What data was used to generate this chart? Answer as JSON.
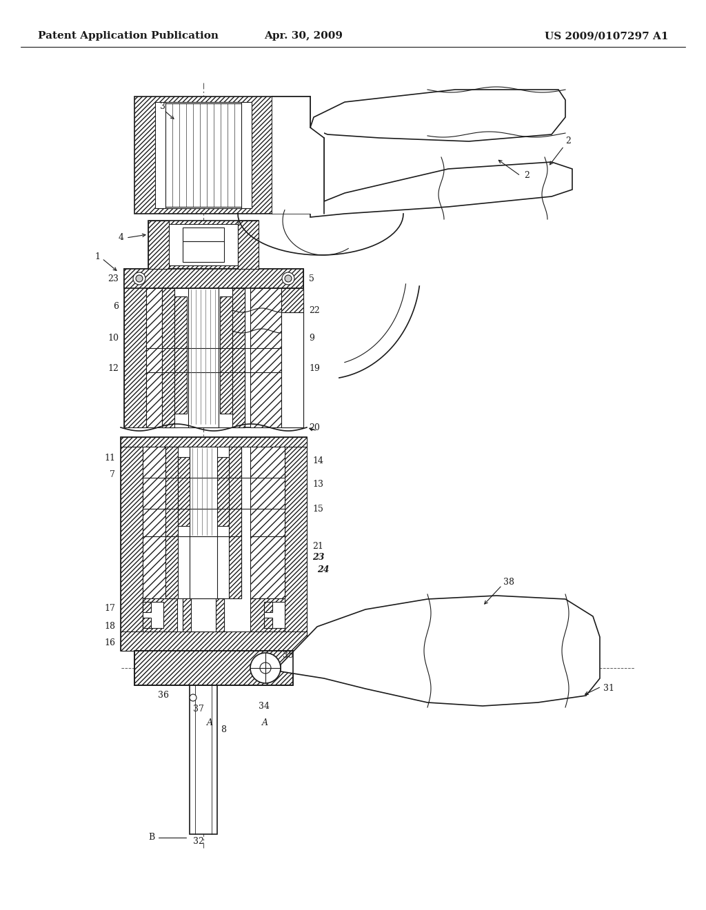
{
  "bg_color": "#ffffff",
  "line_color": "#1a1a1a",
  "header_left": "Patent Application Publication",
  "header_center": "Apr. 30, 2009",
  "header_right": "US 2009/0107297 A1",
  "fig_width": 10.24,
  "fig_height": 13.2,
  "dpi": 100
}
